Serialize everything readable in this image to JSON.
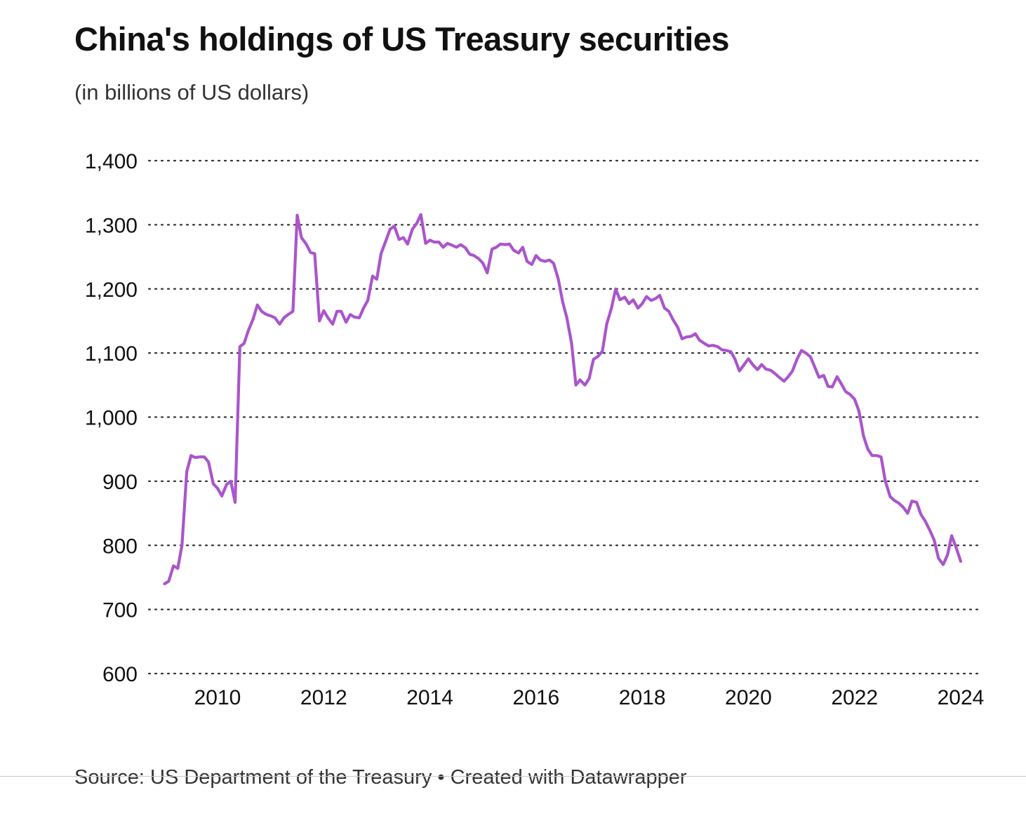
{
  "header": {
    "title": "China's holdings of US Treasury securities",
    "subtitle": "(in billions of US dollars)"
  },
  "footer": {
    "source": "Source: US Department of the Treasury • Created with Datawrapper"
  },
  "colors": {
    "line": "#aa55cc",
    "grid": "#333333",
    "text": "#111111"
  },
  "chart_data": {
    "type": "line",
    "title": "China's holdings of US Treasury securities",
    "subtitle": "(in billions of US dollars)",
    "xlabel": "",
    "ylabel": "",
    "xlim": [
      2008.9,
      2024.0
    ],
    "ylim": [
      600,
      1400
    ],
    "y_ticks": [
      600,
      700,
      800,
      900,
      1000,
      1100,
      1200,
      1300,
      1400
    ],
    "y_tick_labels": [
      "600",
      "700",
      "800",
      "900",
      "1,000",
      "1,100",
      "1,200",
      "1,300",
      "1,400"
    ],
    "x_ticks": [
      2010,
      2012,
      2014,
      2016,
      2018,
      2020,
      2022,
      2024
    ],
    "x_tick_labels": [
      "2010",
      "2012",
      "2014",
      "2016",
      "2018",
      "2020",
      "2022",
      "2024"
    ],
    "grid": "horizontal dotted",
    "legend": "none",
    "series": [
      {
        "color": "#aa55cc",
        "x": [
          2009.0,
          2009.08,
          2009.17,
          2009.25,
          2009.33,
          2009.42,
          2009.5,
          2009.58,
          2009.67,
          2009.75,
          2009.83,
          2009.92,
          2010.0,
          2010.08,
          2010.17,
          2010.25,
          2010.33,
          2010.42,
          2010.5,
          2010.58,
          2010.67,
          2010.75,
          2010.83,
          2010.92,
          2011.0,
          2011.08,
          2011.17,
          2011.25,
          2011.33,
          2011.42,
          2011.5,
          2011.58,
          2011.67,
          2011.75,
          2011.83,
          2011.92,
          2012.0,
          2012.08,
          2012.17,
          2012.25,
          2012.33,
          2012.42,
          2012.5,
          2012.58,
          2012.67,
          2012.75,
          2012.83,
          2012.92,
          2013.0,
          2013.08,
          2013.17,
          2013.25,
          2013.33,
          2013.42,
          2013.5,
          2013.58,
          2013.67,
          2013.75,
          2013.83,
          2013.92,
          2014.0,
          2014.08,
          2014.17,
          2014.25,
          2014.33,
          2014.42,
          2014.5,
          2014.58,
          2014.67,
          2014.75,
          2014.83,
          2014.92,
          2015.0,
          2015.08,
          2015.17,
          2015.25,
          2015.33,
          2015.42,
          2015.5,
          2015.58,
          2015.67,
          2015.75,
          2015.83,
          2015.92,
          2016.0,
          2016.08,
          2016.17,
          2016.25,
          2016.33,
          2016.42,
          2016.5,
          2016.58,
          2016.67,
          2016.75,
          2016.83,
          2016.92,
          2017.0,
          2017.08,
          2017.17,
          2017.25,
          2017.33,
          2017.42,
          2017.5,
          2017.58,
          2017.67,
          2017.75,
          2017.83,
          2017.92,
          2018.0,
          2018.08,
          2018.17,
          2018.25,
          2018.33,
          2018.42,
          2018.5,
          2018.58,
          2018.67,
          2018.75,
          2018.83,
          2018.92,
          2019.0,
          2019.08,
          2019.17,
          2019.25,
          2019.33,
          2019.42,
          2019.5,
          2019.58,
          2019.67,
          2019.75,
          2019.83,
          2019.92,
          2020.0,
          2020.08,
          2020.17,
          2020.25,
          2020.33,
          2020.42,
          2020.5,
          2020.58,
          2020.67,
          2020.75,
          2020.83,
          2020.92,
          2021.0,
          2021.08,
          2021.17,
          2021.25,
          2021.33,
          2021.42,
          2021.5,
          2021.58,
          2021.67,
          2021.75,
          2021.83,
          2021.92,
          2022.0,
          2022.08,
          2022.17,
          2022.25,
          2022.33,
          2022.42,
          2022.5,
          2022.58,
          2022.67,
          2022.75,
          2022.83,
          2022.92,
          2023.0,
          2023.08,
          2023.17,
          2023.25,
          2023.33,
          2023.42,
          2023.5,
          2023.58,
          2023.67,
          2023.75,
          2023.83,
          2023.92,
          2024.0
        ],
        "values": [
          740,
          744,
          768,
          764,
          800,
          915,
          940,
          937,
          938,
          938,
          930,
          896,
          889,
          877,
          895,
          900,
          867,
          1110,
          1115,
          1135,
          1153,
          1175,
          1165,
          1160,
          1158,
          1155,
          1145,
          1155,
          1160,
          1165,
          1315,
          1280,
          1270,
          1257,
          1255,
          1150,
          1166,
          1155,
          1145,
          1165,
          1165,
          1148,
          1160,
          1156,
          1155,
          1170,
          1182,
          1220,
          1215,
          1255,
          1275,
          1293,
          1298,
          1277,
          1280,
          1270,
          1293,
          1302,
          1316,
          1271,
          1276,
          1273,
          1273,
          1265,
          1271,
          1268,
          1265,
          1269,
          1264,
          1254,
          1252,
          1247,
          1240,
          1225,
          1262,
          1265,
          1270,
          1269,
          1270,
          1260,
          1256,
          1265,
          1243,
          1238,
          1252,
          1245,
          1243,
          1245,
          1240,
          1215,
          1180,
          1155,
          1115,
          1050,
          1058,
          1050,
          1060,
          1090,
          1095,
          1103,
          1145,
          1170,
          1200,
          1183,
          1187,
          1177,
          1183,
          1170,
          1177,
          1188,
          1182,
          1185,
          1190,
          1170,
          1165,
          1152,
          1140,
          1122,
          1125,
          1126,
          1130,
          1120,
          1115,
          1111,
          1112,
          1110,
          1105,
          1104,
          1102,
          1090,
          1072,
          1082,
          1091,
          1082,
          1074,
          1082,
          1075,
          1073,
          1068,
          1062,
          1056,
          1063,
          1072,
          1091,
          1104,
          1100,
          1094,
          1078,
          1062,
          1065,
          1048,
          1047,
          1063,
          1052,
          1040,
          1035,
          1028,
          1010,
          970,
          950,
          940,
          940,
          938,
          900,
          876,
          870,
          866,
          859,
          850,
          869,
          867,
          848,
          838,
          823,
          808,
          780,
          770,
          785,
          815,
          795,
          775
        ]
      }
    ]
  }
}
